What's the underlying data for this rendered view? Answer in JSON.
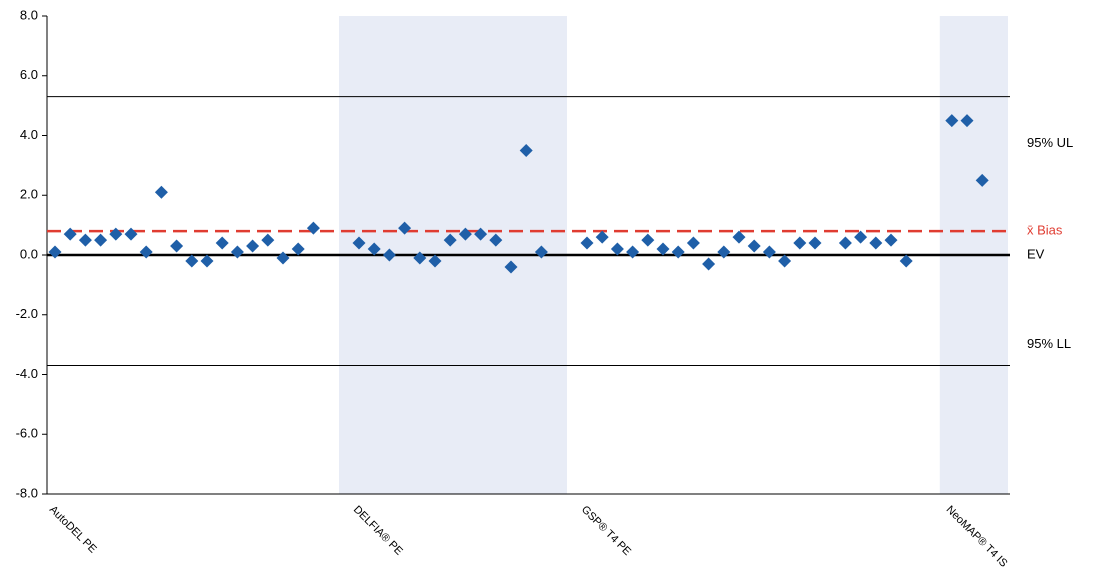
{
  "chart_data": {
    "type": "scatter",
    "categories": [
      "AutoDEL PE",
      null,
      null,
      null,
      null,
      null,
      null,
      null,
      null,
      null,
      null,
      null,
      null,
      null,
      null,
      null,
      null,
      null,
      null,
      null,
      "DELFIA® PE",
      null,
      null,
      null,
      null,
      null,
      null,
      null,
      null,
      null,
      null,
      null,
      null,
      null,
      null,
      "GSP® T4 PE",
      null,
      null,
      null,
      null,
      null,
      null,
      null,
      null,
      null,
      null,
      null,
      null,
      null,
      null,
      null,
      null,
      null,
      null,
      null,
      null,
      null,
      null,
      null,
      "NeoMAP® T4 IS",
      null,
      null
    ],
    "values": [
      0.1,
      0.7,
      0.5,
      0.5,
      0.7,
      0.7,
      0.1,
      2.1,
      0.3,
      -0.2,
      -0.2,
      0.4,
      0.1,
      0.3,
      0.5,
      -0.1,
      0.2,
      0.9,
      null,
      null,
      0.4,
      0.2,
      0.0,
      0.9,
      -0.1,
      -0.2,
      0.5,
      0.7,
      0.7,
      0.5,
      -0.4,
      3.5,
      0.1,
      null,
      null,
      0.4,
      0.6,
      0.2,
      0.1,
      0.5,
      0.2,
      0.1,
      0.4,
      -0.3,
      0.1,
      0.6,
      0.3,
      0.1,
      -0.2,
      0.4,
      0.4,
      null,
      0.4,
      0.6,
      0.4,
      0.5,
      -0.2,
      null,
      null,
      4.5,
      4.5,
      2.5
    ],
    "color": "#1f5fa8",
    "band_color": "#e8ecf6",
    "ylim": [
      -8,
      8
    ],
    "yticks": [
      {
        "value": -8,
        "label": "-8.0"
      },
      {
        "value": -6,
        "label": "-6.0"
      },
      {
        "value": -4,
        "label": "-4.0"
      },
      {
        "value": -2,
        "label": "-2.0"
      },
      {
        "value": 0,
        "label": "0.0"
      },
      {
        "value": 2,
        "label": "2.0"
      },
      {
        "value": 4,
        "label": "4.0"
      },
      {
        "value": 6,
        "label": "6.0"
      },
      {
        "value": 8,
        "label": "8.0"
      }
    ],
    "reference_lines": [
      {
        "name": "95% UL",
        "value": 5.3,
        "color": "#000000",
        "dashed": false
      },
      {
        "name": "x̄ Bias",
        "value": 0.8,
        "color": "#e03c31",
        "dashed": true
      },
      {
        "name": "EV",
        "value": 0,
        "color": "#000000",
        "dashed": false
      },
      {
        "name": "95% LL",
        "value": -3.7,
        "color": "#000000",
        "dashed": false
      }
    ]
  }
}
